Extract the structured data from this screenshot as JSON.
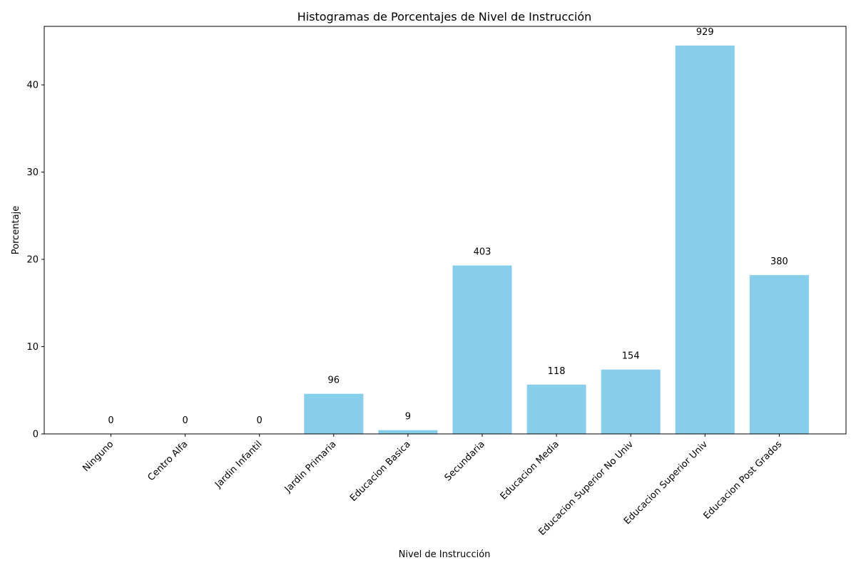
{
  "chart_data": {
    "type": "bar",
    "title": "Histogramas de Porcentajes de Nivel de Instrucción",
    "xlabel": "Nivel de Instrucción",
    "ylabel": "Porcentaje",
    "categories": [
      "Ninguno",
      "Centro Alfa",
      "Jardin Infantil",
      "Jardin Primaria",
      "Educacion Basica",
      "Secundaria",
      "Educacion Media",
      "Educacion Superior No Univ",
      "Educacion Superior Univ",
      "Educacion Post Grados"
    ],
    "values": [
      0,
      0,
      0,
      4.6,
      0.43,
      19.3,
      5.65,
      7.37,
      44.5,
      18.2
    ],
    "data_labels": [
      "0",
      "0",
      "0",
      "96",
      "9",
      "403",
      "118",
      "154",
      "929",
      "380"
    ],
    "ylim": [
      0,
      46.7
    ],
    "yticks": [
      0,
      10,
      20,
      30,
      40
    ],
    "grid": false,
    "bar_color": "#87ceeb"
  }
}
